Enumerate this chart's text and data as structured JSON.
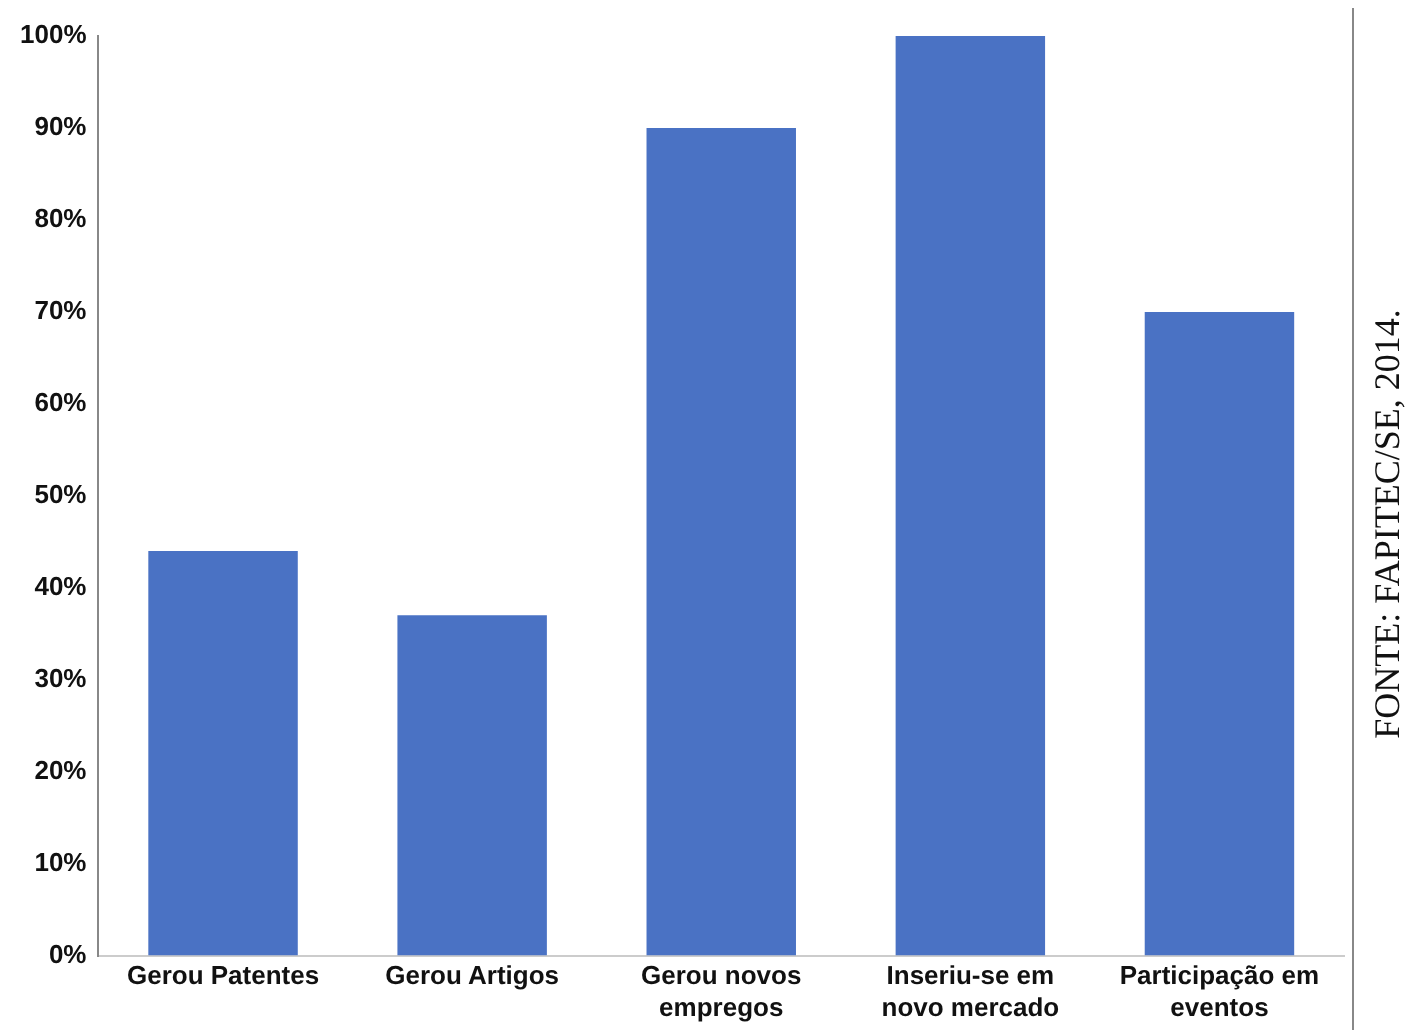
{
  "chart_data": {
    "type": "bar",
    "categories": [
      "Gerou Patentes",
      "Gerou Artigos",
      "Gerou novos empregos",
      "Inseriu-se em novo mercado",
      "Participação em eventos"
    ],
    "values": [
      44,
      37,
      90,
      100,
      70
    ],
    "color": "#4a72c4",
    "ylim": [
      0,
      100
    ],
    "yticks": [
      {
        "value": 0,
        "label": "0%"
      },
      {
        "value": 10,
        "label": "10%"
      },
      {
        "value": 20,
        "label": "20%"
      },
      {
        "value": 30,
        "label": "30%"
      },
      {
        "value": 40,
        "label": "40%"
      },
      {
        "value": 50,
        "label": "50%"
      },
      {
        "value": 60,
        "label": "60%"
      },
      {
        "value": 70,
        "label": "70%"
      },
      {
        "value": 80,
        "label": "80%"
      },
      {
        "value": 90,
        "label": "90%"
      },
      {
        "value": 100,
        "label": "100%"
      }
    ],
    "grid": false,
    "legend": false,
    "annotations": [
      "FONTE: FAPITEC/SE, 2014."
    ]
  }
}
